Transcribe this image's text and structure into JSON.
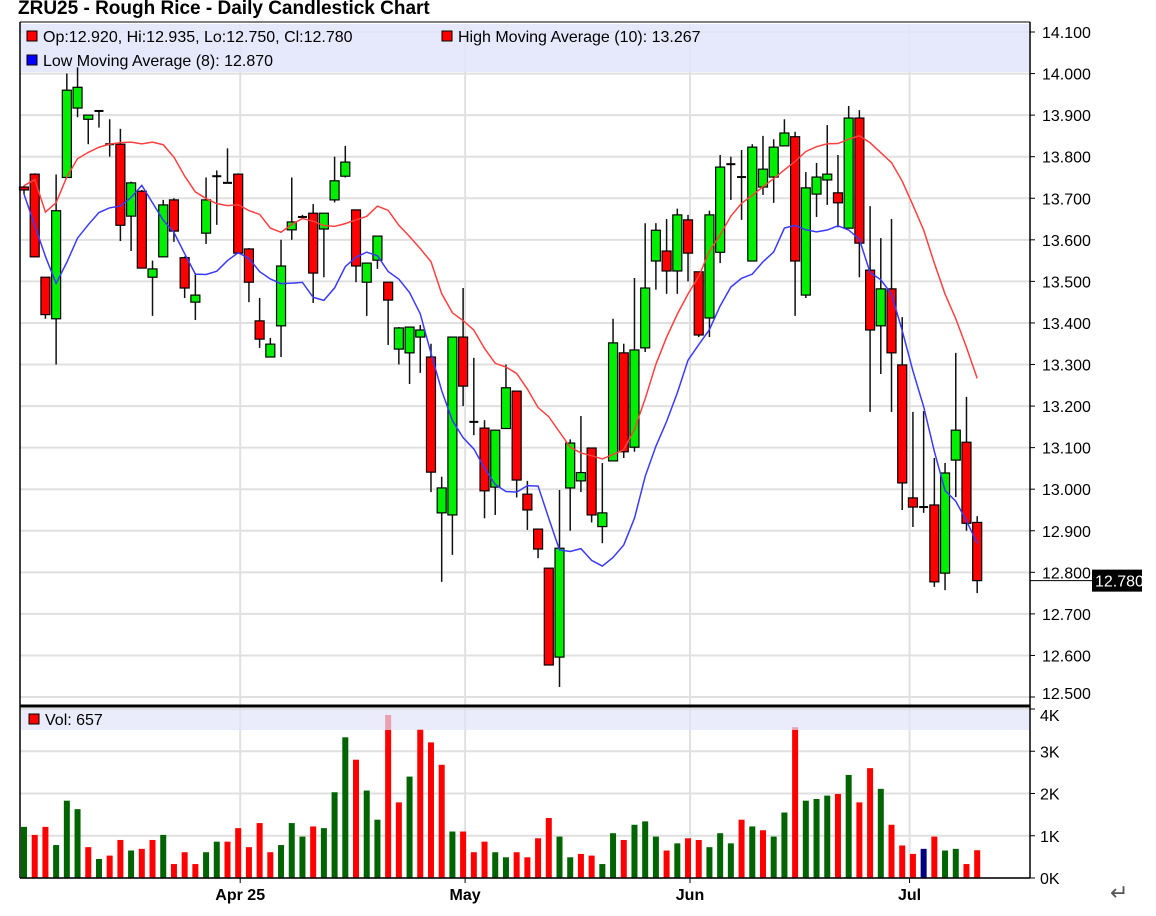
{
  "title": "ZRU25 - Rough Rice - Daily Candlestick Chart",
  "return_glyph": "↵",
  "colors": {
    "up_body": "#00ee00",
    "down_body": "#ff0000",
    "vol_up": "#006400",
    "vol_down": "#ff0000",
    "vol_flat": "#000080",
    "high_ma": "#ff4040",
    "low_ma": "#3a3aff",
    "legend_band": "#e2e4fa",
    "grid": "#e0e0e0"
  },
  "legend": {
    "ohlc": "Op:12.920, Hi:12.935, Lo:12.750, Cl:12.780",
    "high_ma": "High Moving Average (10): 13.267",
    "low_ma": "Low Moving Average (8): 12.870",
    "volume": "Vol: 657"
  },
  "chart_data": {
    "type": "candlestick",
    "title": "ZRU25 - Rough Rice - Daily Candlestick Chart",
    "x_tick_labels": [
      {
        "label": "Apr 25",
        "index": 20
      },
      {
        "label": "May",
        "index": 41
      },
      {
        "label": "Jun",
        "index": 62
      },
      {
        "label": "Jul",
        "index": 82.5
      }
    ],
    "price_ylim": [
      12.5,
      14.1
    ],
    "price_ticks": [
      "14.100",
      "14.000",
      "13.900",
      "13.800",
      "13.700",
      "13.600",
      "13.500",
      "13.400",
      "13.300",
      "13.200",
      "13.100",
      "13.000",
      "12.900",
      "12.800",
      "12.700",
      "12.600",
      "12.500"
    ],
    "last_price_label": "12.780",
    "volume_ylim": [
      0,
      4
    ],
    "volume_ticks": [
      "0K",
      "1K",
      "2K",
      "3K",
      "4K"
    ],
    "grid": true,
    "moving_averages": [
      {
        "name": "High Moving Average (10)",
        "source": "high",
        "period": 10
      },
      {
        "name": "Low Moving Average (8)",
        "source": "low",
        "period": 8
      }
    ],
    "ohlc": [
      [
        13.727,
        13.73,
        13.71,
        13.72
      ],
      [
        13.758,
        13.76,
        13.56,
        13.559
      ],
      [
        13.51,
        13.51,
        13.41,
        13.42
      ],
      [
        13.41,
        13.757,
        13.3,
        13.67
      ],
      [
        13.75,
        14.0,
        13.75,
        13.96
      ],
      [
        13.917,
        14.015,
        13.895,
        13.967
      ],
      [
        13.89,
        13.9,
        13.83,
        13.9
      ],
      [
        13.91,
        13.91,
        13.87,
        13.91
      ],
      [
        13.83,
        13.89,
        13.8,
        13.83
      ],
      [
        13.83,
        13.867,
        13.597,
        13.635
      ],
      [
        13.657,
        13.74,
        13.573,
        13.737
      ],
      [
        13.717,
        13.72,
        13.532,
        13.532
      ],
      [
        13.51,
        13.55,
        13.417,
        13.53
      ],
      [
        13.559,
        13.696,
        13.559,
        13.684
      ],
      [
        13.696,
        13.7,
        13.595,
        13.621
      ],
      [
        13.557,
        13.56,
        13.46,
        13.484
      ],
      [
        13.45,
        13.52,
        13.407,
        13.467
      ],
      [
        13.616,
        13.75,
        13.59,
        13.696
      ],
      [
        13.753,
        13.767,
        13.636,
        13.753
      ],
      [
        13.737,
        13.82,
        13.737,
        13.737
      ],
      [
        13.758,
        13.76,
        13.568,
        13.568
      ],
      [
        13.578,
        13.58,
        13.45,
        13.498
      ],
      [
        13.405,
        13.46,
        13.34,
        13.361
      ],
      [
        13.318,
        13.364,
        13.318,
        13.349
      ],
      [
        13.393,
        13.6,
        13.318,
        13.537
      ],
      [
        13.624,
        13.75,
        13.6,
        13.643
      ],
      [
        13.655,
        13.66,
        13.65,
        13.655
      ],
      [
        13.664,
        13.686,
        13.448,
        13.52
      ],
      [
        13.626,
        13.664,
        13.51,
        13.664
      ],
      [
        13.696,
        13.8,
        13.69,
        13.742
      ],
      [
        13.753,
        13.826,
        13.75,
        13.787
      ],
      [
        13.672,
        13.672,
        13.498,
        13.537
      ],
      [
        13.498,
        13.544,
        13.417,
        13.544
      ],
      [
        13.551,
        13.609,
        13.53,
        13.609
      ],
      [
        13.498,
        13.498,
        13.347,
        13.455
      ],
      [
        13.337,
        13.39,
        13.3,
        13.388
      ],
      [
        13.328,
        13.39,
        13.253,
        13.39
      ],
      [
        13.366,
        13.395,
        13.28,
        13.383
      ],
      [
        13.318,
        13.35,
        12.993,
        13.041
      ],
      [
        12.943,
        13.03,
        12.777,
        13.003
      ],
      [
        12.938,
        13.366,
        12.842,
        13.366
      ],
      [
        13.366,
        13.484,
        13.2,
        13.248
      ],
      [
        13.162,
        13.316,
        13.13,
        13.162
      ],
      [
        13.147,
        13.166,
        12.93,
        12.996
      ],
      [
        13.005,
        13.142,
        12.938,
        13.142
      ],
      [
        13.146,
        13.3,
        13.146,
        13.244
      ],
      [
        13.236,
        13.236,
        12.98,
        13.022
      ],
      [
        12.988,
        13.02,
        12.902,
        12.95
      ],
      [
        12.904,
        12.904,
        12.834,
        12.856
      ],
      [
        12.81,
        12.81,
        12.577,
        12.577
      ],
      [
        12.596,
        12.998,
        12.524,
        12.858
      ],
      [
        13.003,
        13.12,
        12.9,
        13.111
      ],
      [
        13.02,
        13.176,
        12.993,
        13.04
      ],
      [
        13.099,
        13.1,
        12.92,
        12.938
      ],
      [
        12.91,
        13.063,
        12.87,
        12.943
      ],
      [
        13.068,
        13.41,
        13.068,
        13.352
      ],
      [
        13.328,
        13.35,
        13.075,
        13.09
      ],
      [
        13.101,
        13.508,
        13.09,
        13.335
      ],
      [
        13.34,
        13.64,
        13.33,
        13.484
      ],
      [
        13.549,
        13.64,
        13.48,
        13.623
      ],
      [
        13.573,
        13.65,
        13.47,
        13.525
      ],
      [
        13.525,
        13.675,
        13.47,
        13.66
      ],
      [
        13.648,
        13.66,
        13.5,
        13.568
      ],
      [
        13.523,
        13.523,
        13.366,
        13.371
      ],
      [
        13.412,
        13.67,
        13.366,
        13.66
      ],
      [
        13.57,
        13.804,
        13.544,
        13.775
      ],
      [
        13.782,
        13.8,
        13.696,
        13.782
      ],
      [
        13.751,
        13.816,
        13.648,
        13.751
      ],
      [
        13.549,
        13.83,
        13.549,
        13.823
      ],
      [
        13.727,
        13.85,
        13.708,
        13.77
      ],
      [
        13.751,
        13.842,
        13.689,
        13.823
      ],
      [
        13.826,
        13.89,
        13.826,
        13.857
      ],
      [
        13.848,
        13.86,
        13.417,
        13.549
      ],
      [
        13.467,
        13.763,
        13.46,
        13.725
      ],
      [
        13.71,
        13.785,
        13.655,
        13.751
      ],
      [
        13.744,
        13.876,
        13.684,
        13.758
      ],
      [
        13.713,
        13.804,
        13.63,
        13.689
      ],
      [
        13.628,
        13.922,
        13.628,
        13.893
      ],
      [
        13.893,
        13.912,
        13.51,
        13.592
      ],
      [
        13.527,
        13.681,
        13.186,
        13.383
      ],
      [
        13.393,
        13.604,
        13.277,
        13.482
      ],
      [
        13.482,
        13.65,
        13.186,
        13.328
      ],
      [
        13.299,
        13.414,
        12.95,
        13.015
      ],
      [
        12.979,
        13.186,
        12.909,
        12.957
      ],
      [
        12.957,
        13.188,
        12.943,
        12.957
      ],
      [
        12.962,
        13.075,
        12.765,
        12.777
      ],
      [
        12.798,
        13.063,
        12.757,
        13.039
      ],
      [
        13.07,
        13.328,
        12.981,
        13.142
      ],
      [
        13.113,
        13.222,
        12.9,
        12.918
      ],
      [
        12.92,
        12.935,
        12.75,
        12.78
      ]
    ],
    "volume_k": [
      1.21,
      1.02,
      1.21,
      0.78,
      1.83,
      1.63,
      0.73,
      0.45,
      0.53,
      0.9,
      0.65,
      0.69,
      0.9,
      1.02,
      0.33,
      0.61,
      0.33,
      0.61,
      0.86,
      0.86,
      1.18,
      0.73,
      1.3,
      0.61,
      0.78,
      1.3,
      0.98,
      1.22,
      1.18,
      2.03,
      3.33,
      2.8,
      2.07,
      1.38,
      3.86,
      1.79,
      2.4,
      3.52,
      3.21,
      2.68,
      1.1,
      1.1,
      0.61,
      0.86,
      0.61,
      0.49,
      0.61,
      0.49,
      0.94,
      1.42,
      0.98,
      0.49,
      0.57,
      0.53,
      0.33,
      1.06,
      0.9,
      1.26,
      1.34,
      0.98,
      0.65,
      0.82,
      0.94,
      0.9,
      0.73,
      1.06,
      0.82,
      1.38,
      1.22,
      1.13,
      0.98,
      1.55,
      3.57,
      1.83,
      1.87,
      1.95,
      1.99,
      2.44,
      1.79,
      2.6,
      2.11,
      1.26,
      0.77,
      0.57,
      0.69,
      0.98,
      0.65,
      0.69,
      0.33,
      0.657
    ]
  }
}
